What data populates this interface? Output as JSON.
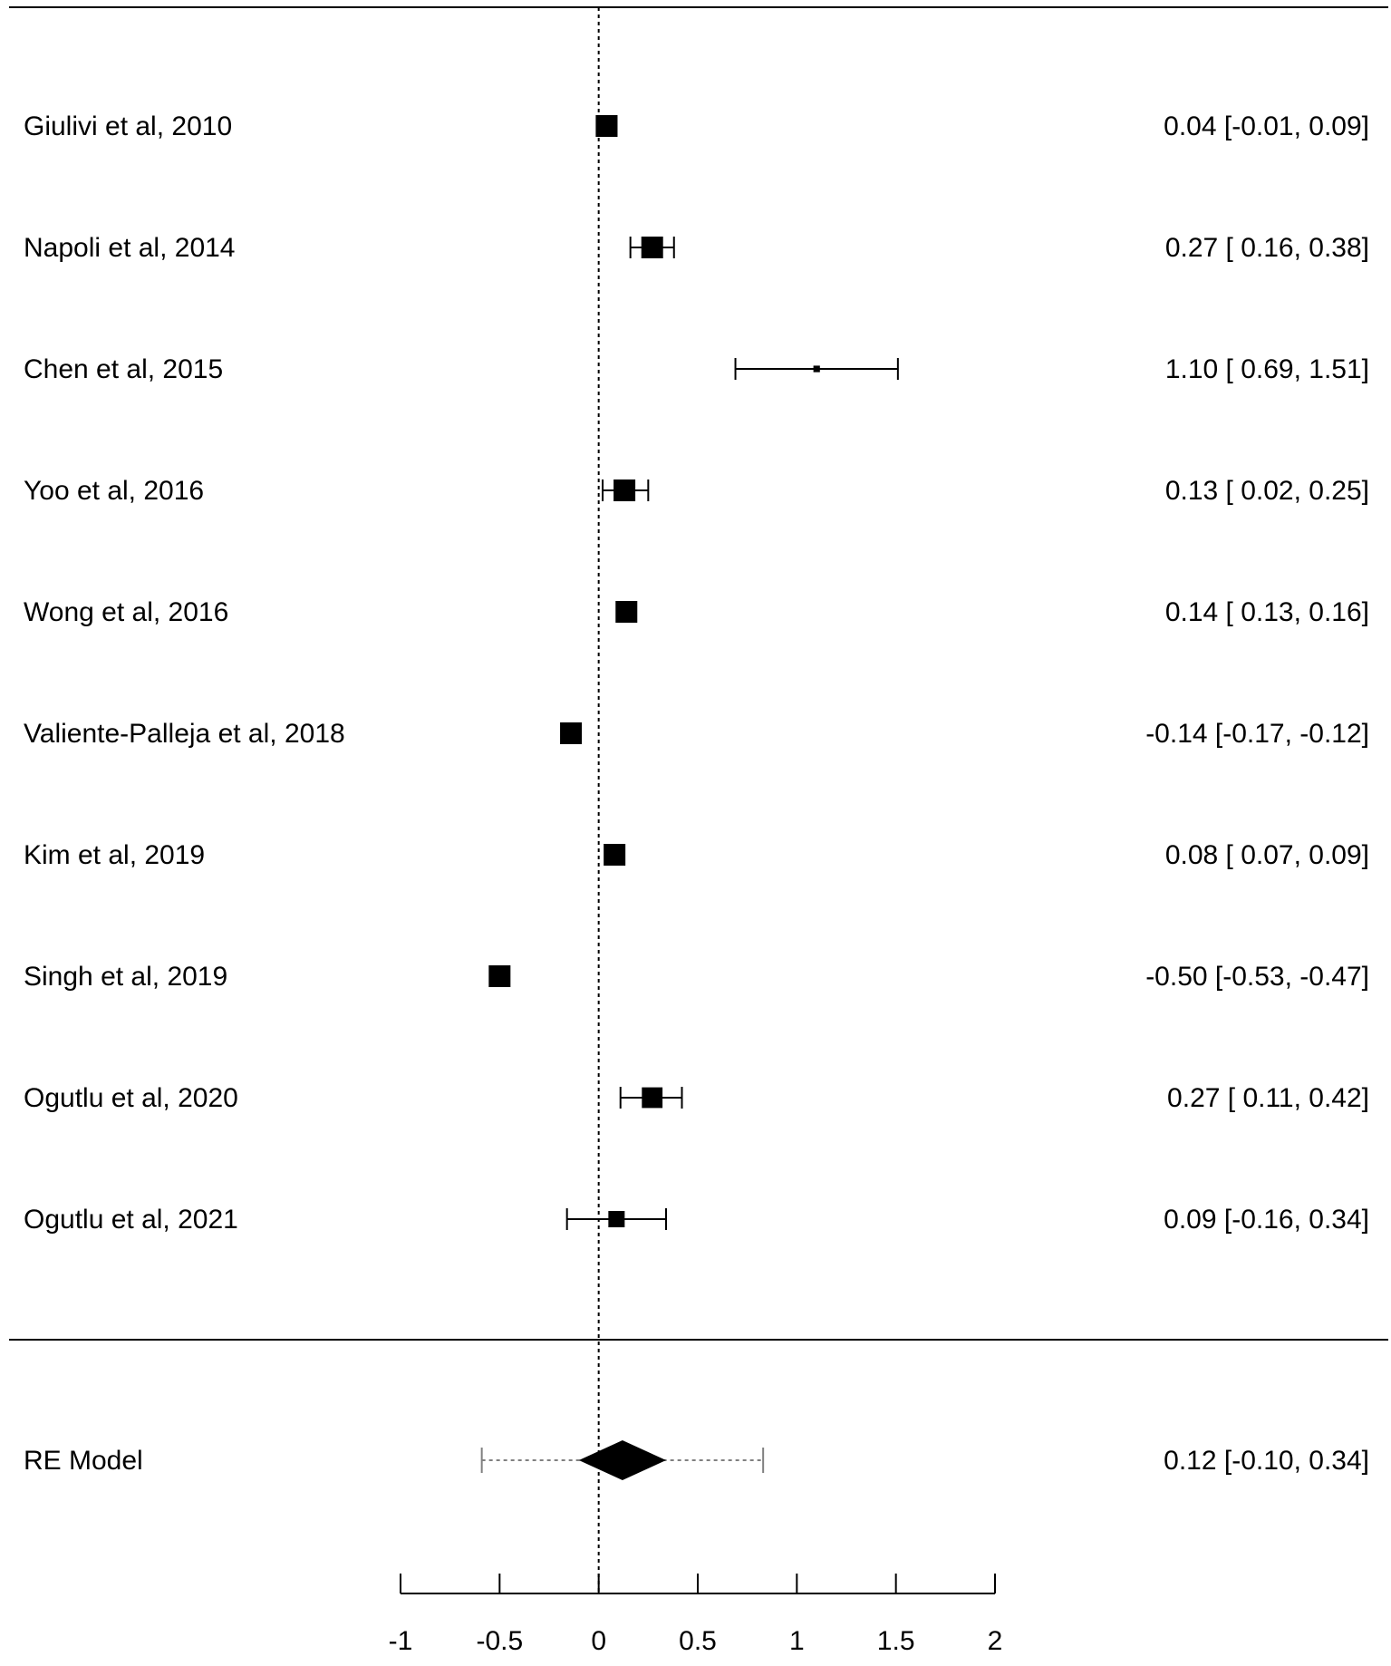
{
  "chart_data": {
    "type": "forest",
    "title": "",
    "xlabel": "",
    "ylabel": "",
    "xlim": [
      -1,
      2
    ],
    "x_ticks": [
      -1,
      -0.5,
      0,
      0.5,
      1,
      1.5,
      2
    ],
    "x_tick_labels": [
      "-1",
      "-0.5",
      "0",
      "0.5",
      "1",
      "1.5",
      "2"
    ],
    "reference_line": 0,
    "grid": false,
    "studies": [
      {
        "label": "Giulivi  et al, 2010",
        "estimate": 0.04,
        "lower": -0.01,
        "upper": 0.09,
        "ci_text": "0.04 [-0.01,  0.09]",
        "weight": 1.0
      },
      {
        "label": "Napoli  et al, 2014",
        "estimate": 0.27,
        "lower": 0.16,
        "upper": 0.38,
        "ci_text": "0.27 [ 0.16,  0.38]",
        "weight": 1.0
      },
      {
        "label": "Chen et al, 2015",
        "estimate": 1.1,
        "lower": 0.69,
        "upper": 1.51,
        "ci_text": "1.10 [ 0.69,  1.51]",
        "weight": 0.3
      },
      {
        "label": "Yoo et al, 2016",
        "estimate": 0.13,
        "lower": 0.02,
        "upper": 0.25,
        "ci_text": "0.13 [ 0.02,  0.25]",
        "weight": 1.0
      },
      {
        "label": "Wong et al, 2016",
        "estimate": 0.14,
        "lower": 0.13,
        "upper": 0.16,
        "ci_text": "0.14 [ 0.13,  0.16]",
        "weight": 1.0
      },
      {
        "label": "Valiente-Palleja  et al, 2018",
        "estimate": -0.14,
        "lower": -0.17,
        "upper": -0.12,
        "ci_text": "-0.14 [-0.17, -0.12]",
        "weight": 1.0
      },
      {
        "label": "Kim et  al, 2019",
        "estimate": 0.08,
        "lower": 0.07,
        "upper": 0.09,
        "ci_text": "0.08 [ 0.07,  0.09]",
        "weight": 1.0
      },
      {
        "label": "Singh et al, 2019",
        "estimate": -0.5,
        "lower": -0.53,
        "upper": -0.47,
        "ci_text": "-0.50 [-0.53, -0.47]",
        "weight": 1.0
      },
      {
        "label": "Ogutlu et al, 2020",
        "estimate": 0.27,
        "lower": 0.11,
        "upper": 0.42,
        "ci_text": "0.27 [ 0.11,  0.42]",
        "weight": 0.95
      },
      {
        "label": "Ogutlu  et al, 2021",
        "estimate": 0.09,
        "lower": -0.16,
        "upper": 0.34,
        "ci_text": "0.09 [-0.16,  0.34]",
        "weight": 0.75
      }
    ],
    "summary": {
      "label": "RE Model",
      "estimate": 0.12,
      "lower": -0.1,
      "upper": 0.34,
      "prediction_lower": -0.59,
      "prediction_upper": 0.83,
      "ci_text": "0.12 [-0.10,  0.34]"
    },
    "colors": {
      "ink": "#000000",
      "prediction_interval": "#808080"
    }
  }
}
